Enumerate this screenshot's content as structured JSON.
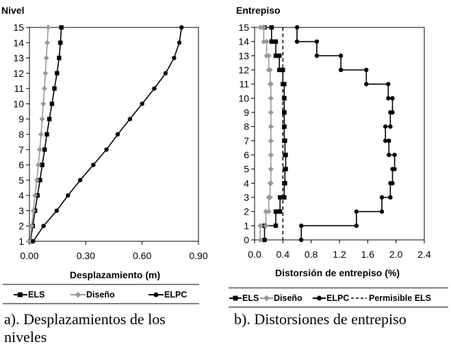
{
  "chart_data": [
    {
      "type": "line",
      "title": "Nivel",
      "xlabel": "Desplazamiento (m)",
      "ylabel": "Nivel",
      "xlim": [
        0,
        0.9
      ],
      "ylim": [
        1,
        15
      ],
      "x_ticks": [
        "0.00",
        "0.30",
        "0.60",
        "0.90"
      ],
      "y_ticks": [
        "1",
        "2",
        "3",
        "4",
        "5",
        "6",
        "7",
        "8",
        "9",
        "10",
        "11",
        "12",
        "13",
        "14",
        "15"
      ],
      "legend_position": "bottom",
      "grid": false,
      "series": [
        {
          "name": "ELS",
          "color": "#000000",
          "marker": "square",
          "points": [
            [
              0.005,
              1
            ],
            [
              0.018,
              2
            ],
            [
              0.03,
              3
            ],
            [
              0.043,
              4
            ],
            [
              0.056,
              5
            ],
            [
              0.068,
              6
            ],
            [
              0.081,
              7
            ],
            [
              0.093,
              8
            ],
            [
              0.106,
              9
            ],
            [
              0.12,
              10
            ],
            [
              0.133,
              11
            ],
            [
              0.147,
              12
            ],
            [
              0.158,
              13
            ],
            [
              0.165,
              14
            ],
            [
              0.17,
              15
            ]
          ]
        },
        {
          "name": "Diseño",
          "color": "#999999",
          "marker": "diamond",
          "points": [
            [
              0.003,
              1
            ],
            [
              0.012,
              2
            ],
            [
              0.021,
              3
            ],
            [
              0.03,
              4
            ],
            [
              0.039,
              5
            ],
            [
              0.047,
              6
            ],
            [
              0.055,
              7
            ],
            [
              0.062,
              8
            ],
            [
              0.068,
              9
            ],
            [
              0.074,
              10
            ],
            [
              0.08,
              11
            ],
            [
              0.085,
              12
            ],
            [
              0.09,
              13
            ],
            [
              0.095,
              14
            ],
            [
              0.1,
              15
            ]
          ]
        },
        {
          "name": "ELPC",
          "color": "#000000",
          "marker": "circle",
          "points": [
            [
              0.02,
              1
            ],
            [
              0.075,
              2
            ],
            [
              0.145,
              3
            ],
            [
              0.205,
              4
            ],
            [
              0.27,
              5
            ],
            [
              0.34,
              6
            ],
            [
              0.41,
              7
            ],
            [
              0.47,
              8
            ],
            [
              0.535,
              9
            ],
            [
              0.6,
              10
            ],
            [
              0.665,
              11
            ],
            [
              0.725,
              12
            ],
            [
              0.77,
              13
            ],
            [
              0.798,
              14
            ],
            [
              0.81,
              15
            ]
          ]
        }
      ]
    },
    {
      "type": "line",
      "title": "Entrepiso",
      "xlabel": "Distorsión de entrepiso (%)",
      "ylabel": "Entrepiso",
      "xlim": [
        0,
        2.4
      ],
      "ylim": [
        0,
        15
      ],
      "x_ticks": [
        "0.0",
        "0.4",
        "0.8",
        "1.2",
        "1.6",
        "2.0",
        "2.4"
      ],
      "y_ticks": [
        "0",
        "1",
        "2",
        "3",
        "4",
        "5",
        "6",
        "7",
        "8",
        "9",
        "10",
        "11",
        "12",
        "13",
        "14",
        "15"
      ],
      "legend_position": "bottom",
      "grid": false,
      "series": [
        {
          "name": "ELS",
          "color": "#000000",
          "marker": "square",
          "step": true,
          "values": [
            0.14,
            0.3,
            0.36,
            0.42,
            0.43,
            0.44,
            0.43,
            0.42,
            0.42,
            0.42,
            0.42,
            0.4,
            0.35,
            0.3,
            0.24,
            0.14
          ]
        },
        {
          "name": "Diseño",
          "color": "#999999",
          "marker": "diamond",
          "step": true,
          "values": [
            0.08,
            0.16,
            0.2,
            0.22,
            0.23,
            0.23,
            0.23,
            0.23,
            0.23,
            0.23,
            0.23,
            0.22,
            0.2,
            0.17,
            0.13,
            0.08
          ]
        },
        {
          "name": "ELPC",
          "color": "#000000",
          "marker": "circle",
          "step": true,
          "values": [
            0.66,
            1.44,
            1.8,
            1.92,
            1.95,
            1.98,
            1.9,
            1.85,
            1.92,
            1.95,
            1.89,
            1.58,
            1.22,
            0.88,
            0.6,
            0.6
          ]
        },
        {
          "name": "Permisible ELS",
          "color": "#000000",
          "dashed": true,
          "constant_x": 0.4
        }
      ]
    }
  ],
  "legends": {
    "left": [
      "ELS",
      "Diseño",
      "ELPC"
    ],
    "right": [
      "ELS",
      "Diseño",
      "ELPC",
      "Permisible ELS"
    ]
  },
  "captions": {
    "left_line1": "a). Desplazamientos de los",
    "left_line2": "niveles",
    "right": "b). Distorsiones de entrepiso"
  }
}
